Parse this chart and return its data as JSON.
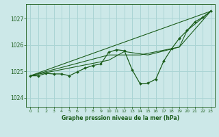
{
  "title": "Graphe pression niveau de la mer (hPa)",
  "background_color": "#cce8e8",
  "grid_color": "#aad4d4",
  "line_color": "#1a5c1a",
  "xlim": [
    -0.5,
    23.5
  ],
  "ylim": [
    1023.65,
    1027.55
  ],
  "yticks": [
    1024,
    1025,
    1026,
    1027
  ],
  "xticks": [
    0,
    1,
    2,
    3,
    4,
    5,
    6,
    7,
    8,
    9,
    10,
    11,
    12,
    13,
    14,
    15,
    16,
    17,
    18,
    19,
    20,
    21,
    22,
    23
  ],
  "main_series": [
    [
      0,
      1024.83
    ],
    [
      1,
      1024.83
    ],
    [
      2,
      1024.92
    ],
    [
      3,
      1024.9
    ],
    [
      4,
      1024.9
    ],
    [
      5,
      1024.83
    ],
    [
      6,
      1024.98
    ],
    [
      7,
      1025.12
    ],
    [
      8,
      1025.22
    ],
    [
      9,
      1025.28
    ],
    [
      10,
      1025.72
    ],
    [
      11,
      1025.82
    ],
    [
      12,
      1025.78
    ],
    [
      13,
      1025.05
    ],
    [
      14,
      1024.53
    ],
    [
      15,
      1024.55
    ],
    [
      16,
      1024.7
    ],
    [
      17,
      1025.38
    ],
    [
      18,
      1025.85
    ],
    [
      19,
      1026.25
    ],
    [
      20,
      1026.55
    ],
    [
      21,
      1026.88
    ],
    [
      22,
      1027.05
    ],
    [
      23,
      1027.28
    ]
  ],
  "line_straight": [
    [
      0,
      1024.83
    ],
    [
      23,
      1027.28
    ]
  ],
  "line_trend1": [
    [
      0,
      1024.83
    ],
    [
      10,
      1025.42
    ],
    [
      12,
      1025.75
    ],
    [
      15,
      1025.62
    ],
    [
      19,
      1025.92
    ],
    [
      23,
      1027.28
    ]
  ],
  "line_trend2": [
    [
      0,
      1024.83
    ],
    [
      10,
      1025.62
    ],
    [
      14,
      1025.62
    ],
    [
      19,
      1025.92
    ],
    [
      20,
      1026.55
    ],
    [
      23,
      1027.28
    ]
  ]
}
